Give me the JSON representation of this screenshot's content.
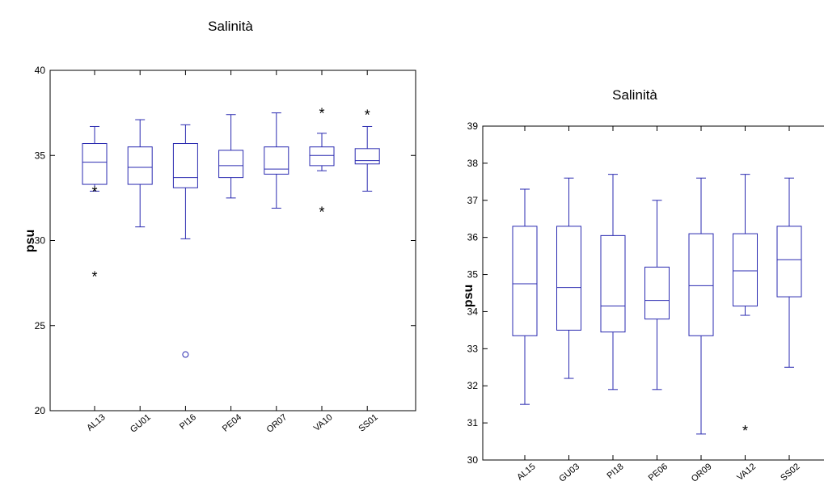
{
  "chart_data": [
    {
      "type": "box",
      "title": "Salinità",
      "xlabel": "",
      "ylabel": "psu",
      "ylim": [
        20,
        40
      ],
      "yticks": [
        "20",
        "25",
        "30",
        "35",
        "40"
      ],
      "categories": [
        "AL13",
        "GU01",
        "PI16",
        "PE04",
        "OR07",
        "VA10",
        "SS01"
      ],
      "boxes": [
        {
          "min": 32.9,
          "q1": 33.3,
          "median": 34.6,
          "q3": 35.7,
          "max": 36.7,
          "outliers": [
            {
              "value": 33.0,
              "marker": "*"
            },
            {
              "value": 28.0,
              "marker": "*"
            }
          ]
        },
        {
          "min": 30.8,
          "q1": 33.3,
          "median": 34.3,
          "q3": 35.5,
          "max": 37.1,
          "outliers": []
        },
        {
          "min": 30.1,
          "q1": 33.1,
          "median": 33.7,
          "q3": 35.7,
          "max": 36.8,
          "outliers": [
            {
              "value": 23.3,
              "marker": "o"
            }
          ]
        },
        {
          "min": 32.5,
          "q1": 33.7,
          "median": 34.4,
          "q3": 35.3,
          "max": 37.4,
          "outliers": []
        },
        {
          "min": 31.9,
          "q1": 33.9,
          "median": 34.2,
          "q3": 35.5,
          "max": 37.5,
          "outliers": []
        },
        {
          "min": 34.1,
          "q1": 34.4,
          "median": 35.0,
          "q3": 35.5,
          "max": 36.3,
          "outliers": [
            {
              "value": 37.6,
              "marker": "*"
            },
            {
              "value": 31.8,
              "marker": "*"
            }
          ]
        },
        {
          "min": 32.9,
          "q1": 34.5,
          "median": 34.7,
          "q3": 35.4,
          "max": 36.7,
          "outliers": [
            {
              "value": 37.5,
              "marker": "*"
            }
          ]
        }
      ],
      "grid": false,
      "color": "#2a2ab0"
    },
    {
      "type": "box",
      "title": "Salinità",
      "xlabel": "",
      "ylabel": "psu",
      "ylim": [
        30,
        39
      ],
      "yticks": [
        "30",
        "31",
        "32",
        "33",
        "34",
        "35",
        "36",
        "37",
        "38",
        "39"
      ],
      "categories": [
        "AL15",
        "GU03",
        "PI18",
        "PE06",
        "OR09",
        "VA12",
        "SS02"
      ],
      "boxes": [
        {
          "min": 31.5,
          "q1": 33.35,
          "median": 34.75,
          "q3": 36.3,
          "max": 37.3,
          "outliers": []
        },
        {
          "min": 32.2,
          "q1": 33.5,
          "median": 34.65,
          "q3": 36.3,
          "max": 37.6,
          "outliers": []
        },
        {
          "min": 31.9,
          "q1": 33.45,
          "median": 34.15,
          "q3": 36.05,
          "max": 37.7,
          "outliers": []
        },
        {
          "min": 31.9,
          "q1": 33.8,
          "median": 34.3,
          "q3": 35.2,
          "max": 37.0,
          "outliers": []
        },
        {
          "min": 30.7,
          "q1": 33.35,
          "median": 34.7,
          "q3": 36.1,
          "max": 37.6,
          "outliers": []
        },
        {
          "min": 33.9,
          "q1": 34.15,
          "median": 35.1,
          "q3": 36.1,
          "max": 37.7,
          "outliers": [
            {
              "value": 30.85,
              "marker": "*"
            }
          ]
        },
        {
          "min": 32.5,
          "q1": 34.4,
          "median": 35.4,
          "q3": 36.3,
          "max": 37.6,
          "outliers": []
        }
      ],
      "grid": false,
      "color": "#2a2ab0"
    }
  ]
}
